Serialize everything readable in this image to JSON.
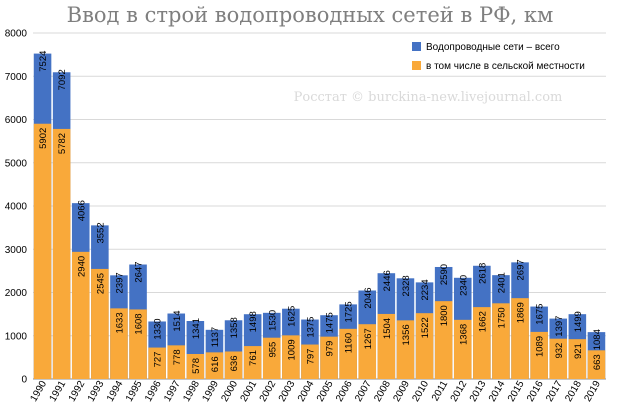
{
  "chart_data": {
    "type": "bar",
    "title": "Ввод в строй водопроводных сетей в РФ, км",
    "watermark": "Росстат © burckina-new.livejournal.com",
    "categories": [
      "1990",
      "1991",
      "1992",
      "1993",
      "1994",
      "1995",
      "1996",
      "1997",
      "1998",
      "1999",
      "2000",
      "2001",
      "2002",
      "2003",
      "2004",
      "2005",
      "2006",
      "2007",
      "2008",
      "2009",
      "2010",
      "2011",
      "2012",
      "2013",
      "2014",
      "2015",
      "2016",
      "2017",
      "2018",
      "2019"
    ],
    "series": [
      {
        "name": "Водопроводные сети –  всего",
        "color": "#4472c4",
        "values": [
          7524,
          7092,
          4066,
          3552,
          2397,
          2647,
          1330,
          1514,
          1341,
          1137,
          1358,
          1498,
          1530,
          1625,
          1375,
          1475,
          1725,
          2046,
          2446,
          2328,
          2234,
          2590,
          2340,
          2618,
          2401,
          2697,
          1675,
          1397,
          1499,
          1084
        ]
      },
      {
        "name": "в том числе в сельской местности",
        "color": "#f9a93a",
        "values": [
          5902,
          5782,
          2940,
          2545,
          1633,
          1608,
          727,
          778,
          578,
          616,
          636,
          761,
          955,
          1009,
          797,
          979,
          1160,
          1267,
          1504,
          1356,
          1522,
          1800,
          1368,
          1662,
          1750,
          1869,
          1089,
          932,
          921,
          663
        ]
      }
    ],
    "yticks": [
      0,
      1000,
      2000,
      3000,
      4000,
      5000,
      6000,
      7000,
      8000
    ],
    "ylim": [
      0,
      8000
    ],
    "grid": true,
    "legend_position": "top-right"
  }
}
